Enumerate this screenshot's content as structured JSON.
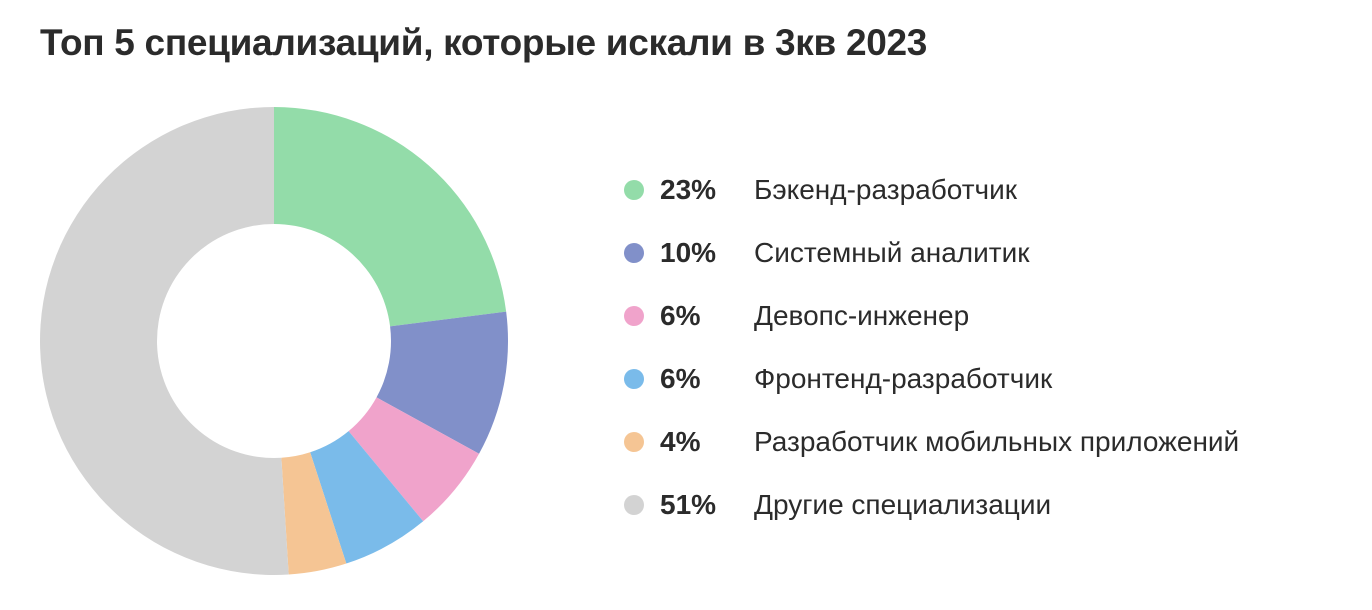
{
  "chart_data": {
    "type": "pie",
    "title": "Топ 5 специализаций, которые искали в 3кв 2023",
    "donut": true,
    "legend_position": "right",
    "slices": [
      {
        "label": "Бэкенд-разработчик",
        "value": 23,
        "value_label": "23%",
        "color": "#93dca9"
      },
      {
        "label": "Системный аналитик",
        "value": 10,
        "value_label": "10%",
        "color": "#8190c9"
      },
      {
        "label": "Девопс-инженер",
        "value": 6,
        "value_label": "6%",
        "color": "#f0a3cb"
      },
      {
        "label": "Фронтенд-разработчик",
        "value": 6,
        "value_label": "6%",
        "color": "#7abbea"
      },
      {
        "label": "Разработчик мобильных приложений",
        "value": 4,
        "value_label": "4%",
        "color": "#f5c594"
      },
      {
        "label": "Другие специализации",
        "value": 51,
        "value_label": "51%",
        "color": "#d3d3d3"
      }
    ]
  }
}
